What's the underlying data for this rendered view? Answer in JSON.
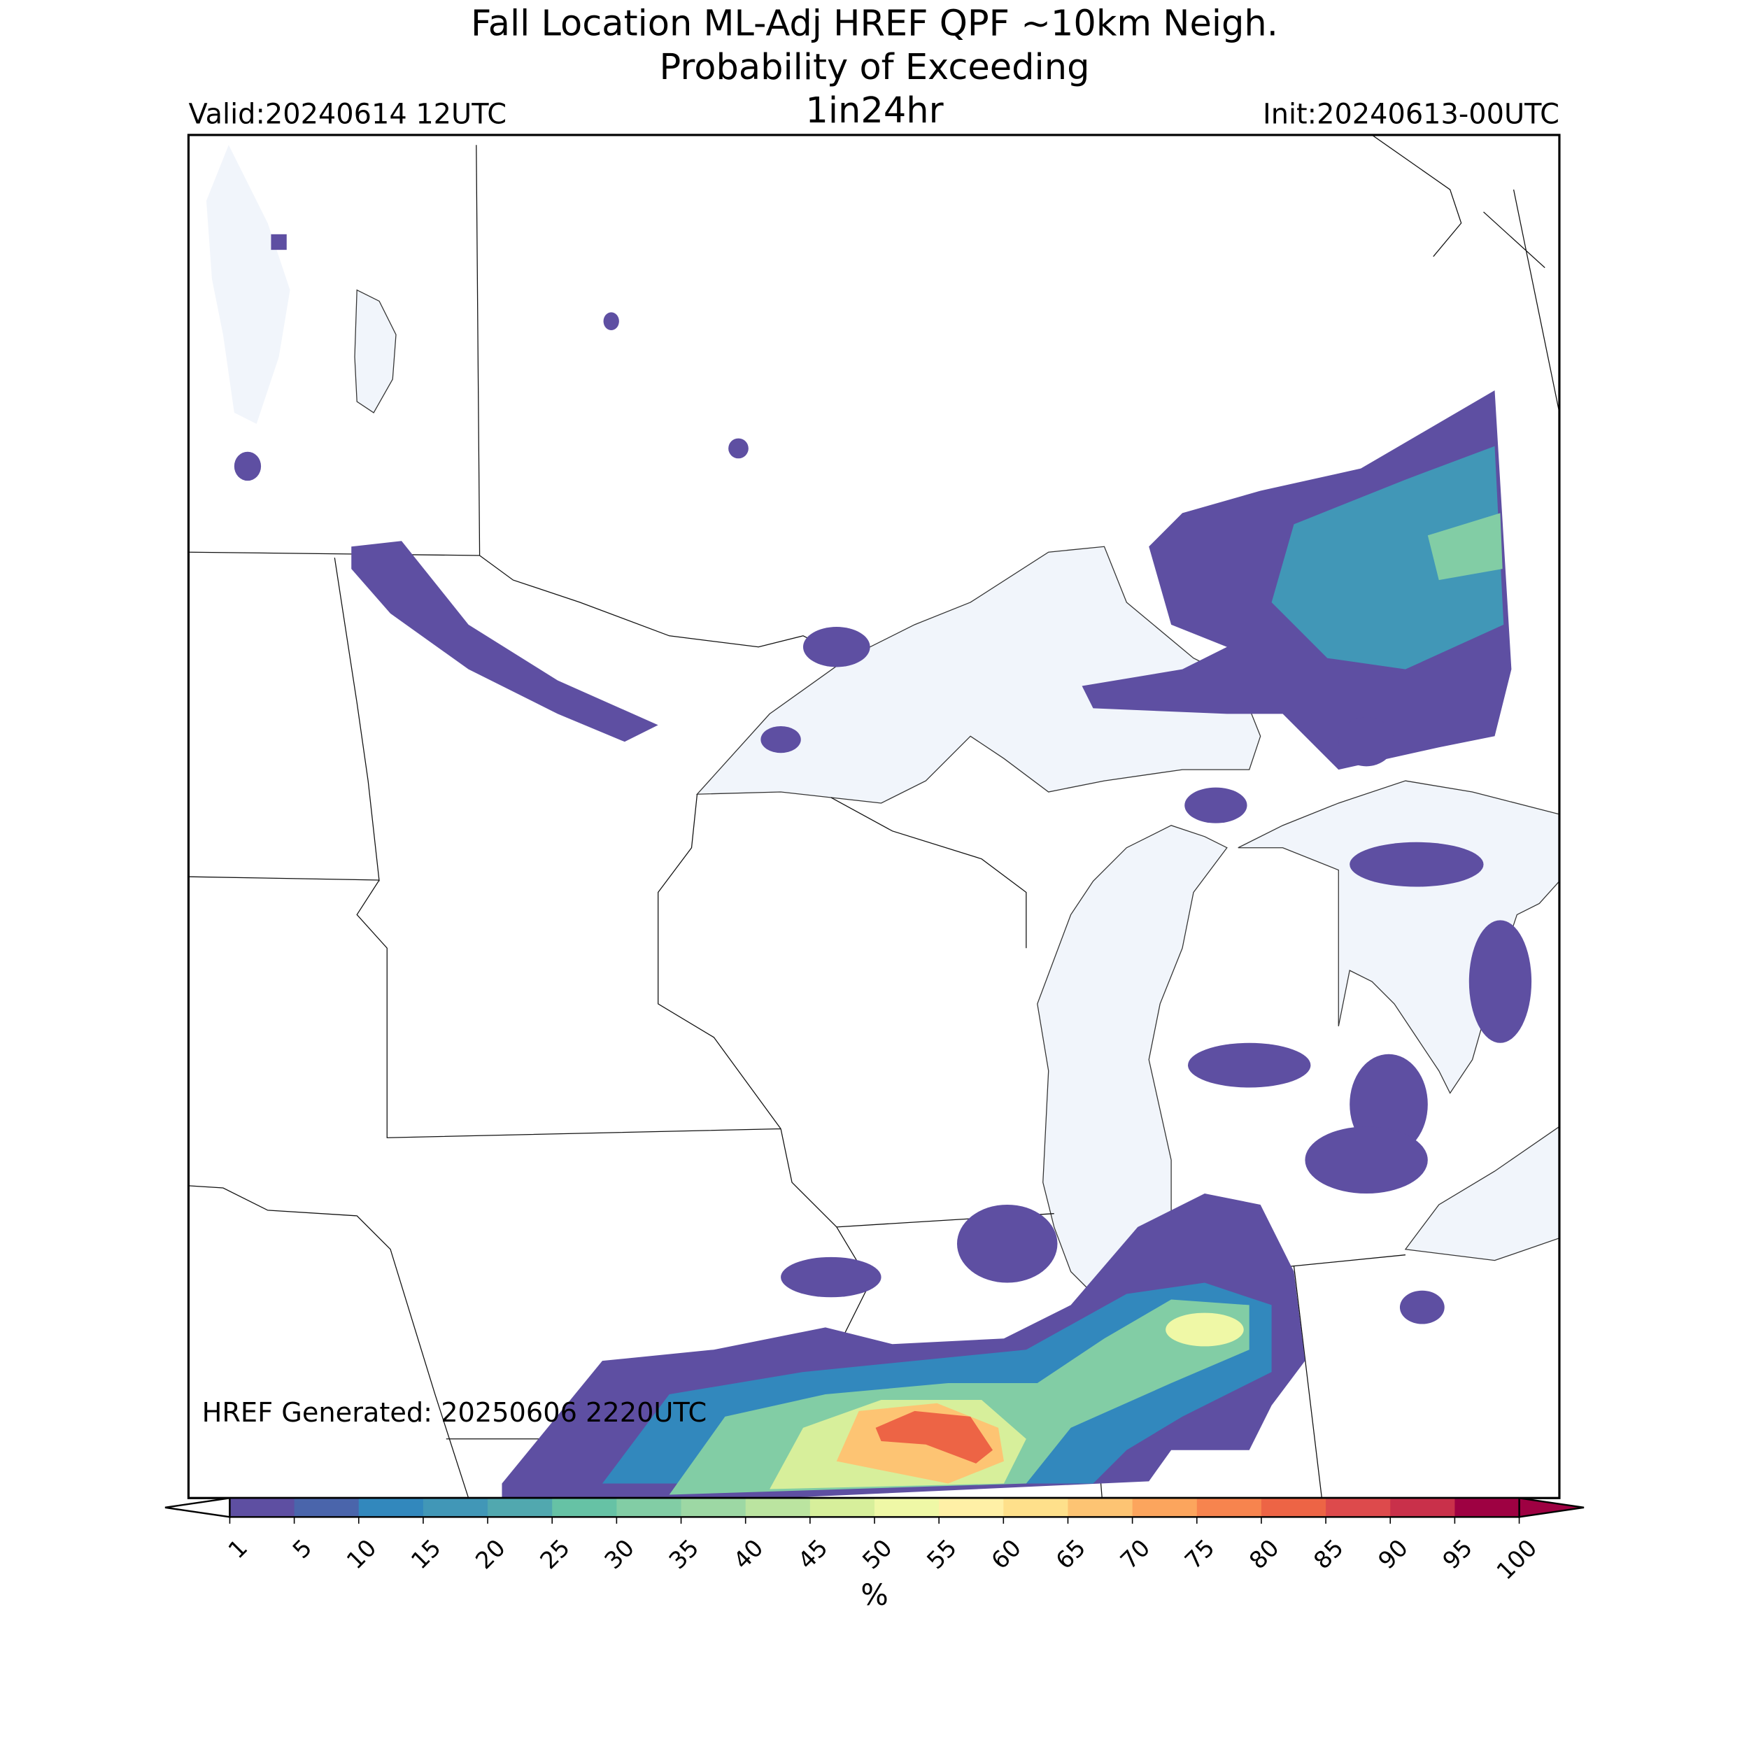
{
  "header": {
    "title_lines": [
      "Fall Location ML-Adj HREF QPF ~10km Neigh.",
      "Probability of Exceeding"
    ],
    "subtitle": "1in24hr",
    "valid": "Valid:20240614 12UTC",
    "init": "Init:20240613-00UTC"
  },
  "footer_note": "HREF Generated: 20250606 2220UTC",
  "colorbar": {
    "levels": [
      1,
      5,
      10,
      15,
      20,
      25,
      30,
      35,
      40,
      45,
      50,
      55,
      60,
      65,
      70,
      75,
      80,
      85,
      90,
      95,
      100
    ],
    "colors": [
      "#5e4fa2",
      "#4a65ab",
      "#3288bd",
      "#4197b7",
      "#51a8af",
      "#66c2a5",
      "#82cda5",
      "#9dd8a4",
      "#bbe4a0",
      "#d7ef9b",
      "#eff8a6",
      "#fff0a6",
      "#fee08b",
      "#fdc473",
      "#fca55d",
      "#f7844e",
      "#ed6445",
      "#dd4a4c",
      "#c9304a",
      "#9e0142"
    ],
    "under_color": "#ffffff",
    "over_color": "#9e0142",
    "label": "%"
  }
}
